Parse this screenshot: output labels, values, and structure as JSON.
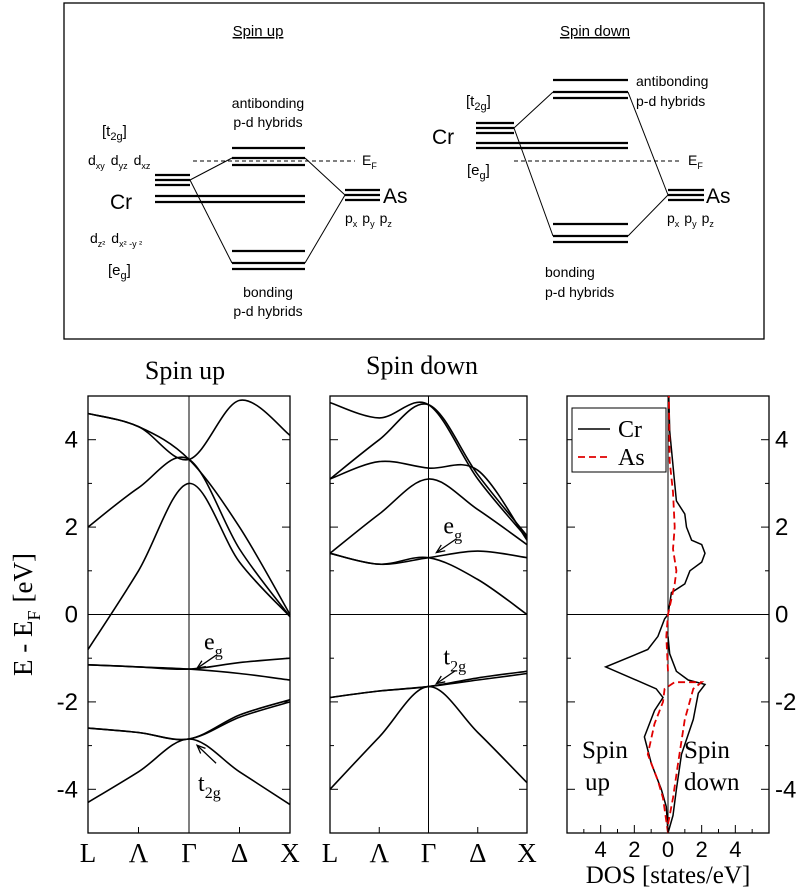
{
  "diagram": {
    "spin_up": {
      "title": "Spin up",
      "antibonding": [
        "antibonding",
        "p-d hybrids"
      ],
      "bonding": [
        "bonding",
        "p-d hybrids"
      ],
      "t2g_label": "[t",
      "t2g_sub": "2g",
      "t2g_close": "]",
      "d_orbitals_t2g": {
        "d": "d",
        "xy": "xy",
        "yz": "yz",
        "xz": "xz"
      },
      "d_orbitals_eg": {
        "d": "d",
        "z2": "z²",
        "x2y2": "x² -y ²"
      },
      "eg_label": "[e",
      "eg_sub": "g",
      "eg_close": "]",
      "cr": "Cr",
      "as": "As",
      "p_orbitals": {
        "p": "p",
        "x": "x",
        "y": "y",
        "z": "z"
      },
      "ef": "E",
      "ef_sub": "F"
    },
    "spin_down": {
      "title": "Spin down",
      "antibonding": [
        "antibonding",
        "p-d hybrids"
      ],
      "bonding": [
        "bonding",
        "p-d hybrids"
      ],
      "t2g_label": "[t",
      "t2g_sub": "2g",
      "t2g_close": "]",
      "eg_label": "[e",
      "eg_sub": "g",
      "eg_close": "]",
      "cr": "Cr",
      "as": "As",
      "ef": "E",
      "ef_sub": "F"
    }
  },
  "chart_data": [
    {
      "type": "line",
      "panel": "band-structure-spin-up",
      "title": "Spin up",
      "ylabel": "E - E",
      "ylabel_sub": "F",
      "ylabel_unit": "[eV]",
      "ylim": [
        -5,
        5
      ],
      "yticks": [
        -4,
        -2,
        0,
        2,
        4
      ],
      "xticks": [
        "L",
        "Λ",
        "Γ",
        "Δ",
        "X"
      ],
      "kpath_positions": [
        0,
        0.5,
        1,
        1.5,
        2
      ],
      "annotations": [
        {
          "text": "e",
          "sub": "g",
          "x": 1.05,
          "y": -1.3
        },
        {
          "text": "t",
          "sub": "2g",
          "x": 1.05,
          "y": -2.9
        }
      ],
      "bands": [
        [
          [
            0,
            -4.3
          ],
          [
            0.5,
            -3.6
          ],
          [
            1,
            -2.85
          ],
          [
            1.5,
            -3.6
          ],
          [
            2,
            -4.35
          ]
        ],
        [
          [
            0,
            -2.6
          ],
          [
            0.5,
            -2.7
          ],
          [
            1,
            -2.85
          ],
          [
            1.5,
            -2.3
          ],
          [
            2,
            -1.95
          ]
        ],
        [
          [
            0,
            -2.6
          ],
          [
            0.5,
            -2.7
          ],
          [
            1,
            -2.85
          ],
          [
            1.5,
            -2.35
          ],
          [
            2,
            -2.0
          ]
        ],
        [
          [
            0,
            -1.15
          ],
          [
            0.5,
            -1.2
          ],
          [
            1,
            -1.25
          ],
          [
            1.5,
            -1.35
          ],
          [
            2,
            -1.5
          ]
        ],
        [
          [
            0,
            -1.15
          ],
          [
            0.5,
            -1.2
          ],
          [
            1,
            -1.25
          ],
          [
            1.5,
            -1.1
          ],
          [
            2,
            -1.0
          ]
        ],
        [
          [
            0,
            -0.8
          ],
          [
            0.5,
            1.0
          ],
          [
            1,
            3.0
          ],
          [
            1.5,
            1.2
          ],
          [
            2,
            -0.05
          ]
        ],
        [
          [
            0,
            2.0
          ],
          [
            0.5,
            2.9
          ],
          [
            1,
            3.55
          ],
          [
            1.5,
            1.5
          ],
          [
            2,
            -0.05
          ]
        ],
        [
          [
            0,
            4.6
          ],
          [
            0.5,
            4.3
          ],
          [
            1,
            3.55
          ],
          [
            1.5,
            2.0
          ],
          [
            2,
            0.0
          ]
        ],
        [
          [
            0,
            4.6
          ],
          [
            0.5,
            4.3
          ],
          [
            1,
            3.55
          ],
          [
            1.5,
            4.9
          ],
          [
            2,
            4.1
          ]
        ]
      ]
    },
    {
      "type": "line",
      "panel": "band-structure-spin-down",
      "title": "Spin down",
      "ylim": [
        -5,
        5
      ],
      "xticks": [
        "L",
        "Λ",
        "Γ",
        "Δ",
        "X"
      ],
      "kpath_positions": [
        0,
        0.5,
        1,
        1.5,
        2
      ],
      "annotations": [
        {
          "text": "e",
          "sub": "g",
          "x": 1.05,
          "y": 1.35
        },
        {
          "text": "t",
          "sub": "2g",
          "x": 1.05,
          "y": -1.65
        }
      ],
      "bands": [
        [
          [
            0,
            -4.0
          ],
          [
            0.5,
            -2.8
          ],
          [
            1,
            -1.65
          ],
          [
            1.5,
            -2.7
          ],
          [
            2,
            -3.85
          ]
        ],
        [
          [
            0,
            -1.9
          ],
          [
            0.5,
            -1.75
          ],
          [
            1,
            -1.65
          ],
          [
            1.5,
            -1.45
          ],
          [
            2,
            -1.3
          ]
        ],
        [
          [
            0,
            -1.9
          ],
          [
            0.5,
            -1.75
          ],
          [
            1,
            -1.65
          ],
          [
            1.5,
            -1.5
          ],
          [
            2,
            -1.35
          ]
        ],
        [
          [
            0,
            1.4
          ],
          [
            0.5,
            1.15
          ],
          [
            1,
            1.3
          ],
          [
            1.5,
            1.45
          ],
          [
            2,
            1.3
          ]
        ],
        [
          [
            0,
            1.4
          ],
          [
            0.5,
            1.15
          ],
          [
            1,
            1.3
          ],
          [
            1.5,
            0.8
          ],
          [
            2,
            0.0
          ]
        ],
        [
          [
            0,
            1.4
          ],
          [
            0.5,
            2.3
          ],
          [
            1,
            3.1
          ],
          [
            1.5,
            2.4
          ],
          [
            2,
            1.6
          ]
        ],
        [
          [
            0,
            3.1
          ],
          [
            0.5,
            3.5
          ],
          [
            1,
            3.35
          ],
          [
            1.5,
            3.3
          ],
          [
            2,
            1.7
          ]
        ],
        [
          [
            0,
            3.1
          ],
          [
            0.5,
            4.0
          ],
          [
            1,
            4.8
          ],
          [
            1.5,
            3.2
          ],
          [
            2,
            1.8
          ]
        ],
        [
          [
            0,
            4.85
          ],
          [
            0.5,
            4.5
          ],
          [
            1,
            4.8
          ],
          [
            1.5,
            3.1
          ],
          [
            2,
            1.75
          ]
        ]
      ]
    },
    {
      "type": "line",
      "panel": "dos",
      "xlabel": "DOS [states/eV]",
      "xlim": [
        -6,
        6
      ],
      "xticks": [
        -4,
        -2,
        0,
        2,
        4
      ],
      "xtick_labels": [
        "4",
        "2",
        "0",
        "2",
        "4"
      ],
      "ylim": [
        -5,
        5
      ],
      "yticks": [
        -4,
        -2,
        0,
        2,
        4
      ],
      "legend": {
        "position": "top-left",
        "entries": [
          "Cr",
          "As"
        ]
      },
      "colors": {
        "Cr": "#000000",
        "As": "#e00000"
      },
      "spin_labels": {
        "up": [
          "Spin",
          "up"
        ],
        "down": [
          "Spin",
          "down"
        ]
      },
      "series": [
        {
          "name": "Cr",
          "points": [
            [
              0,
              -5
            ],
            [
              -0.1,
              -4.4
            ],
            [
              -0.4,
              -4.0
            ],
            [
              -1,
              -3.4
            ],
            [
              -1.4,
              -2.8
            ],
            [
              -0.8,
              -2.2
            ],
            [
              -0.3,
              -1.9
            ],
            [
              -0.7,
              -1.7
            ],
            [
              -3.7,
              -1.2
            ],
            [
              -1.2,
              -0.8
            ],
            [
              -0.6,
              -0.5
            ],
            [
              -0.2,
              -0.1
            ],
            [
              0,
              0
            ],
            [
              0.2,
              0.5
            ],
            [
              1,
              0.7
            ],
            [
              1.3,
              1.0
            ],
            [
              2.0,
              1.2
            ],
            [
              2.2,
              1.4
            ],
            [
              2.0,
              1.6
            ],
            [
              1.4,
              1.7
            ],
            [
              1.1,
              2.0
            ],
            [
              1.0,
              2.3
            ],
            [
              0.5,
              2.6
            ],
            [
              0.4,
              3.0
            ],
            [
              0.25,
              3.6
            ],
            [
              0.1,
              4.2
            ],
            [
              0.05,
              5
            ]
          ]
        },
        {
          "name": "Cr-spin-down-lower",
          "points": [
            [
              0,
              -5
            ],
            [
              0.3,
              -4.6
            ],
            [
              0.5,
              -4.0
            ],
            [
              0.8,
              -3.2
            ],
            [
              1.5,
              -2.4
            ],
            [
              1.8,
              -1.8
            ],
            [
              2.2,
              -1.6
            ],
            [
              1.2,
              -1.5
            ],
            [
              0.5,
              -1.3
            ],
            [
              0.1,
              -0.9
            ],
            [
              0,
              -0.5
            ]
          ]
        },
        {
          "name": "As",
          "points": [
            [
              0,
              -5
            ],
            [
              -0.3,
              -4.2
            ],
            [
              -0.6,
              -3.8
            ],
            [
              -1.2,
              -3.2
            ],
            [
              -0.8,
              -2.5
            ],
            [
              -0.3,
              -2.0
            ],
            [
              -0.2,
              -1.7
            ],
            [
              0.4,
              -1.55
            ],
            [
              2.0,
              -1.55
            ],
            [
              1.5,
              -1.7
            ],
            [
              1.0,
              -2.4
            ],
            [
              0.6,
              -3.4
            ],
            [
              0.3,
              -4.2
            ],
            [
              0,
              -4.8
            ]
          ]
        },
        {
          "name": "As-upper",
          "points": [
            [
              0,
              -1.3
            ],
            [
              -0.1,
              -0.5
            ],
            [
              0,
              0
            ],
            [
              0.4,
              0.7
            ],
            [
              0.5,
              1.0
            ],
            [
              0.3,
              1.5
            ],
            [
              0.4,
              2.0
            ],
            [
              0.3,
              2.8
            ],
            [
              0.1,
              3.5
            ],
            [
              0.05,
              5
            ]
          ]
        }
      ]
    }
  ]
}
